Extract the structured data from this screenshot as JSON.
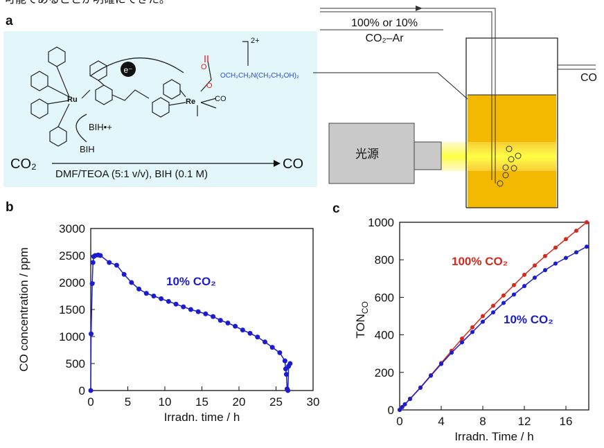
{
  "header_text": "可能であることが明確にできた。",
  "panel_a": {
    "label": "a",
    "gas_line1": "100% or 10%",
    "gas_line2": "CO₂–Ar",
    "outlet": "CO",
    "light_source": "光源",
    "reactant": "CO₂",
    "product": "CO",
    "conditions": "DMF/TEOA (5:1 v/v), BIH (0.1 M)",
    "electron": "e⁻",
    "donor": "BIH",
    "donor_radical": "BIH•+",
    "charge": "2+",
    "ligand": "OCH₂CH₂N(CH₂CH₂OH)₂",
    "ligand_o1": "O",
    "ligand_o2": "O",
    "ru": "Ru",
    "re": "Re",
    "carbonyl": "CO"
  },
  "chart_data": [
    {
      "type": "line",
      "panel": "b",
      "xlabel": "Irradn. time / h",
      "ylabel": "CO concentration / ppm",
      "xlim": [
        0,
        30
      ],
      "ylim": [
        0,
        3000
      ],
      "xticks": [
        0,
        5,
        10,
        15,
        20,
        25,
        30
      ],
      "yticks": [
        0,
        500,
        1000,
        1500,
        2000,
        2500,
        3000
      ],
      "series": [
        {
          "name": "10% CO₂",
          "color": "#1c1ccf",
          "x": [
            0,
            0.05,
            0.2,
            0.3,
            0.4,
            0.6,
            1,
            1.3,
            2.5,
            3.5,
            4.5,
            5.5,
            6.5,
            7.5,
            8.5,
            9.5,
            10.5,
            11.5,
            12.5,
            13.5,
            14.5,
            15.5,
            16.5,
            17.5,
            18.5,
            19.5,
            20.5,
            21.5,
            22.5,
            23.5,
            24.5,
            25.5,
            26.2,
            26.3,
            26.4,
            26.5,
            26.6,
            26.7,
            26.9
          ],
          "values": [
            0,
            1050,
            1980,
            2370,
            2480,
            2500,
            2510,
            2500,
            2370,
            2320,
            2150,
            2000,
            1880,
            1800,
            1750,
            1700,
            1650,
            1600,
            1550,
            1500,
            1460,
            1420,
            1370,
            1300,
            1250,
            1190,
            1120,
            1060,
            990,
            900,
            800,
            700,
            550,
            400,
            300,
            30,
            0,
            450,
            500
          ]
        }
      ]
    },
    {
      "type": "line",
      "panel": "c",
      "xlabel": "Irradn. Time / h",
      "ylabel": {
        "main": "TON",
        "sub": "CO"
      },
      "xlim": [
        0,
        18.2
      ],
      "ylim": [
        0,
        1000
      ],
      "xticks": [
        0,
        4,
        8,
        12,
        16
      ],
      "yticks": [
        0,
        200,
        400,
        600,
        800,
        1000
      ],
      "series": [
        {
          "name": "100% CO₂",
          "color": "#d42a1e",
          "x": [
            0,
            0.25,
            0.5,
            1,
            2,
            3,
            4,
            5,
            6,
            7,
            8,
            9,
            10,
            11,
            12,
            13,
            14,
            15,
            16,
            17,
            18
          ],
          "values": [
            0,
            15,
            30,
            60,
            120,
            185,
            250,
            315,
            380,
            440,
            500,
            555,
            610,
            665,
            720,
            770,
            820,
            865,
            910,
            955,
            1000
          ]
        },
        {
          "name": "10% CO₂",
          "color": "#1c1ccf",
          "x": [
            0,
            0.25,
            0.5,
            1,
            2,
            3,
            4,
            5,
            6,
            7,
            8,
            9,
            10,
            11,
            12,
            13,
            14,
            15,
            16,
            17,
            18
          ],
          "values": [
            0,
            15,
            30,
            58,
            118,
            182,
            245,
            305,
            360,
            415,
            470,
            520,
            570,
            615,
            660,
            705,
            745,
            780,
            810,
            840,
            870
          ]
        }
      ]
    }
  ]
}
